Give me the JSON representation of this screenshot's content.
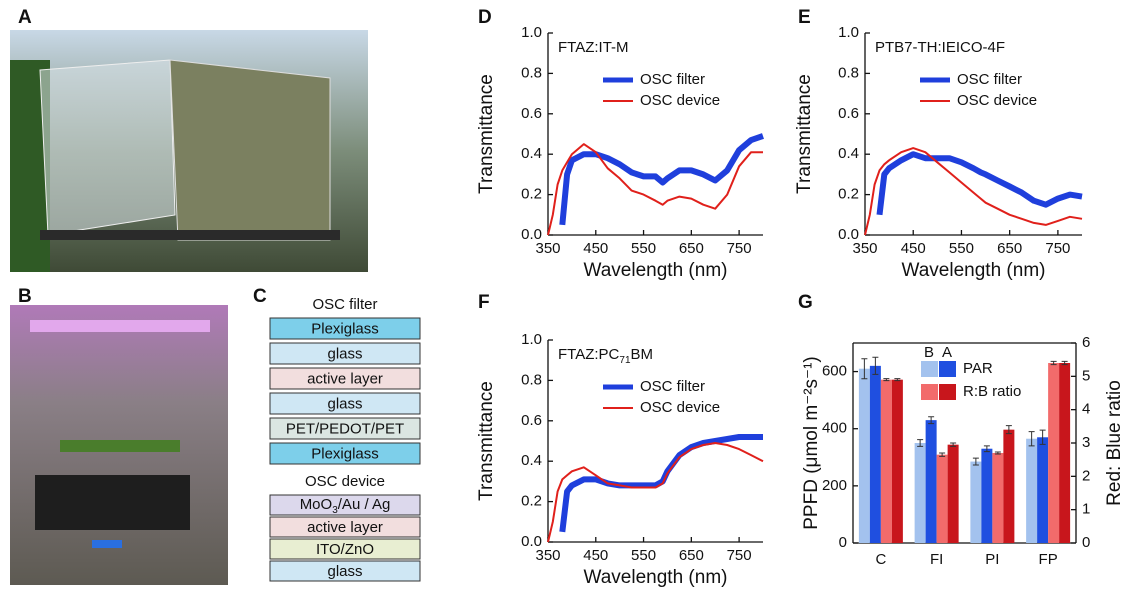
{
  "panel_labels": {
    "A": "A",
    "B": "B",
    "C": "C",
    "D": "D",
    "E": "E",
    "F": "F",
    "G": "G"
  },
  "layer_stack": {
    "sections": [
      {
        "title": "OSC filter",
        "layers": [
          {
            "label": "Plexiglass",
            "color": "#7dcfea"
          },
          {
            "label": "glass",
            "color": "#cfe7f4"
          },
          {
            "label": "active layer",
            "color": "#f2dede"
          },
          {
            "label": "glass",
            "color": "#cfe7f4"
          },
          {
            "label": "PET/PEDOT/PET",
            "color": "#dbe6e2"
          },
          {
            "label": "Plexiglass",
            "color": "#7dcfea"
          }
        ]
      },
      {
        "title": "OSC device",
        "layers": [
          {
            "label_parts": [
              "MoO",
              "3",
              "/Au / Ag"
            ],
            "color": "#dcd8ec"
          },
          {
            "label": "active layer",
            "color": "#f2dede"
          },
          {
            "label": "ITO/ZnO",
            "color": "#e8eed2"
          },
          {
            "label": "glass",
            "color": "#cfe7f4"
          }
        ]
      }
    ]
  },
  "chart_data": [
    {
      "type": "line",
      "title": "FTAZ:IT-M",
      "xlabel": "Wavelength (nm)",
      "ylabel": "Transmittance",
      "x": [
        350,
        360,
        370,
        380,
        390,
        400,
        425,
        450,
        475,
        500,
        525,
        550,
        575,
        590,
        600,
        625,
        650,
        675,
        700,
        725,
        750,
        775,
        800
      ],
      "xlim": [
        350,
        800
      ],
      "xticks": [
        350,
        450,
        550,
        650,
        750
      ],
      "ylim": [
        0,
        1
      ],
      "yticks": [
        {
          "value": 0,
          "label": "0.0"
        },
        0.2,
        0.4,
        0.6,
        0.8,
        {
          "value": 1,
          "label": "1.0"
        }
      ],
      "series": [
        {
          "name": "OSC filter",
          "color": "#1f3fdc",
          "values": [
            null,
            null,
            null,
            0.05,
            0.3,
            0.37,
            0.4,
            0.4,
            0.38,
            0.35,
            0.31,
            0.29,
            0.29,
            0.26,
            0.28,
            0.32,
            0.32,
            0.3,
            0.27,
            0.32,
            0.42,
            0.47,
            0.49
          ]
        },
        {
          "name": "OSC device",
          "color": "#e0201b",
          "values": [
            0,
            0.1,
            0.25,
            0.32,
            0.36,
            0.4,
            0.45,
            0.41,
            0.33,
            0.28,
            0.22,
            0.2,
            0.17,
            0.15,
            0.17,
            0.19,
            0.18,
            0.15,
            0.13,
            0.2,
            0.34,
            0.41,
            0.41
          ]
        }
      ]
    },
    {
      "type": "line",
      "title": "PTB7-TH:IEICO-4F",
      "xlabel": "Wavelength (nm)",
      "ylabel": "Transmittance",
      "x": [
        350,
        360,
        370,
        380,
        390,
        400,
        425,
        450,
        475,
        500,
        525,
        550,
        575,
        590,
        600,
        625,
        650,
        675,
        700,
        725,
        750,
        775,
        800
      ],
      "xlim": [
        350,
        800
      ],
      "xticks": [
        350,
        450,
        550,
        650,
        750
      ],
      "ylim": [
        0,
        1
      ],
      "yticks": [
        {
          "value": 0,
          "label": "0.0"
        },
        0.2,
        0.4,
        0.6,
        0.8,
        {
          "value": 1,
          "label": "1.0"
        }
      ],
      "series": [
        {
          "name": "OSC filter",
          "color": "#1f3fdc",
          "values": [
            null,
            null,
            null,
            0.1,
            0.3,
            0.33,
            0.37,
            0.4,
            0.38,
            0.38,
            0.38,
            0.36,
            0.33,
            0.31,
            0.3,
            0.27,
            0.24,
            0.21,
            0.17,
            0.15,
            0.18,
            0.2,
            0.19
          ]
        },
        {
          "name": "OSC device",
          "color": "#e0201b",
          "values": [
            0,
            0.1,
            0.25,
            0.32,
            0.35,
            0.37,
            0.41,
            0.43,
            0.41,
            0.36,
            0.31,
            0.26,
            0.21,
            0.18,
            0.16,
            0.13,
            0.1,
            0.08,
            0.06,
            0.05,
            0.07,
            0.09,
            0.08
          ]
        }
      ]
    },
    {
      "type": "line",
      "title_parts": [
        "FTAZ:PC",
        "71",
        "BM"
      ],
      "xlabel": "Wavelength (nm)",
      "ylabel": "Transmittance",
      "x": [
        350,
        360,
        370,
        380,
        390,
        400,
        425,
        450,
        475,
        500,
        525,
        550,
        575,
        590,
        600,
        625,
        650,
        675,
        700,
        725,
        750,
        775,
        800
      ],
      "xlim": [
        350,
        800
      ],
      "xticks": [
        350,
        450,
        550,
        650,
        750
      ],
      "ylim": [
        0,
        1
      ],
      "yticks": [
        {
          "value": 0,
          "label": "0.0"
        },
        0.2,
        0.4,
        0.6,
        0.8,
        {
          "value": 1,
          "label": "1.0"
        }
      ],
      "series": [
        {
          "name": "OSC filter",
          "color": "#1f3fdc",
          "values": [
            null,
            null,
            null,
            0.05,
            0.25,
            0.28,
            0.31,
            0.31,
            0.29,
            0.28,
            0.28,
            0.28,
            0.28,
            0.3,
            0.35,
            0.43,
            0.47,
            0.49,
            0.5,
            0.51,
            0.52,
            0.52,
            0.52
          ]
        },
        {
          "name": "OSC device",
          "color": "#e0201b",
          "values": [
            0,
            0.1,
            0.25,
            0.31,
            0.33,
            0.35,
            0.37,
            0.33,
            0.29,
            0.28,
            0.27,
            0.27,
            0.27,
            0.29,
            0.34,
            0.42,
            0.46,
            0.48,
            0.49,
            0.48,
            0.46,
            0.43,
            0.4
          ]
        }
      ]
    },
    {
      "type": "bar",
      "ylabel": "PPFD (μmol m⁻²s⁻¹)",
      "y2label": "Red: Blue ratio",
      "categories": [
        "C",
        "FI",
        "PI",
        "FP"
      ],
      "groups": [
        "B",
        "A"
      ],
      "ylim": [
        0,
        700
      ],
      "yticks": [
        0,
        200,
        400,
        600
      ],
      "y2lim": [
        0,
        6
      ],
      "y2ticks": [
        0,
        1,
        2,
        3,
        4,
        5,
        6
      ],
      "series": [
        {
          "name": "PAR",
          "axis": "y",
          "colors": [
            "#a3c2ee",
            "#1f4fe0"
          ],
          "values": [
            [
              610,
              350,
              285,
              365
            ],
            [
              620,
              430,
              330,
              370
            ]
          ],
          "errors": [
            [
              35,
              12,
              12,
              25
            ],
            [
              30,
              12,
              10,
              25
            ]
          ]
        },
        {
          "name": "R:B ratio",
          "axis": "y2",
          "colors": [
            "#f26b6b",
            "#c8161c"
          ],
          "values": [
            [
              4.9,
              2.65,
              2.7,
              5.4
            ],
            [
              4.9,
              2.95,
              3.4,
              5.4
            ]
          ],
          "errors": [
            [
              0.03,
              0.05,
              0.03,
              0.05
            ],
            [
              0.03,
              0.05,
              0.12,
              0.05
            ]
          ]
        }
      ]
    }
  ]
}
